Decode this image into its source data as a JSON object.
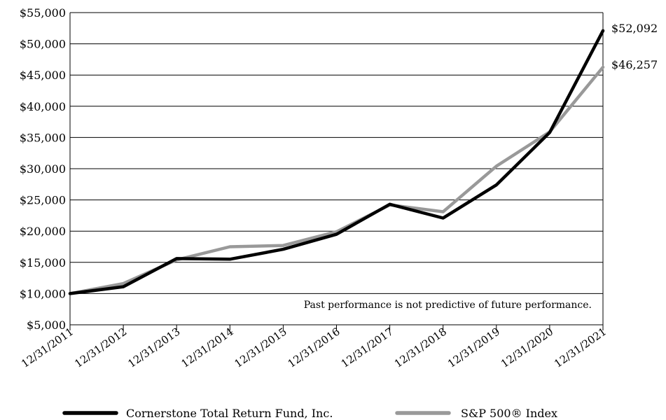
{
  "chart_data": {
    "type": "line",
    "x": [
      "12/31/2011",
      "12/31/2012",
      "12/31/2013",
      "12/31/2014",
      "12/31/2015",
      "12/31/2016",
      "12/31/2017",
      "12/31/2018",
      "12/31/2019",
      "12/31/2020",
      "12/31/2021"
    ],
    "ylim": [
      5000,
      55000
    ],
    "yticks": [
      "$5,000",
      "$10,000",
      "$15,000",
      "$20,000",
      "$25,000",
      "$30,000",
      "$35,000",
      "$40,000",
      "$45,000",
      "$50,000",
      "$55,000"
    ],
    "grid": true,
    "legend_position": "bottom",
    "series": [
      {
        "name": "Cornerstone Total Return Fund, Inc.",
        "color": "#000000",
        "values": [
          10000,
          11100,
          15600,
          15500,
          17100,
          19500,
          24300,
          22100,
          27400,
          35800,
          52092
        ],
        "end_label": "$52,092"
      },
      {
        "name": "S&P 500® Index",
        "color": "#999999",
        "values": [
          10000,
          11600,
          15400,
          17500,
          17700,
          19900,
          24200,
          23100,
          30400,
          35900,
          46257
        ],
        "end_label": "$46,257"
      }
    ],
    "annotation": "Past performance is not predictive of future performance."
  }
}
